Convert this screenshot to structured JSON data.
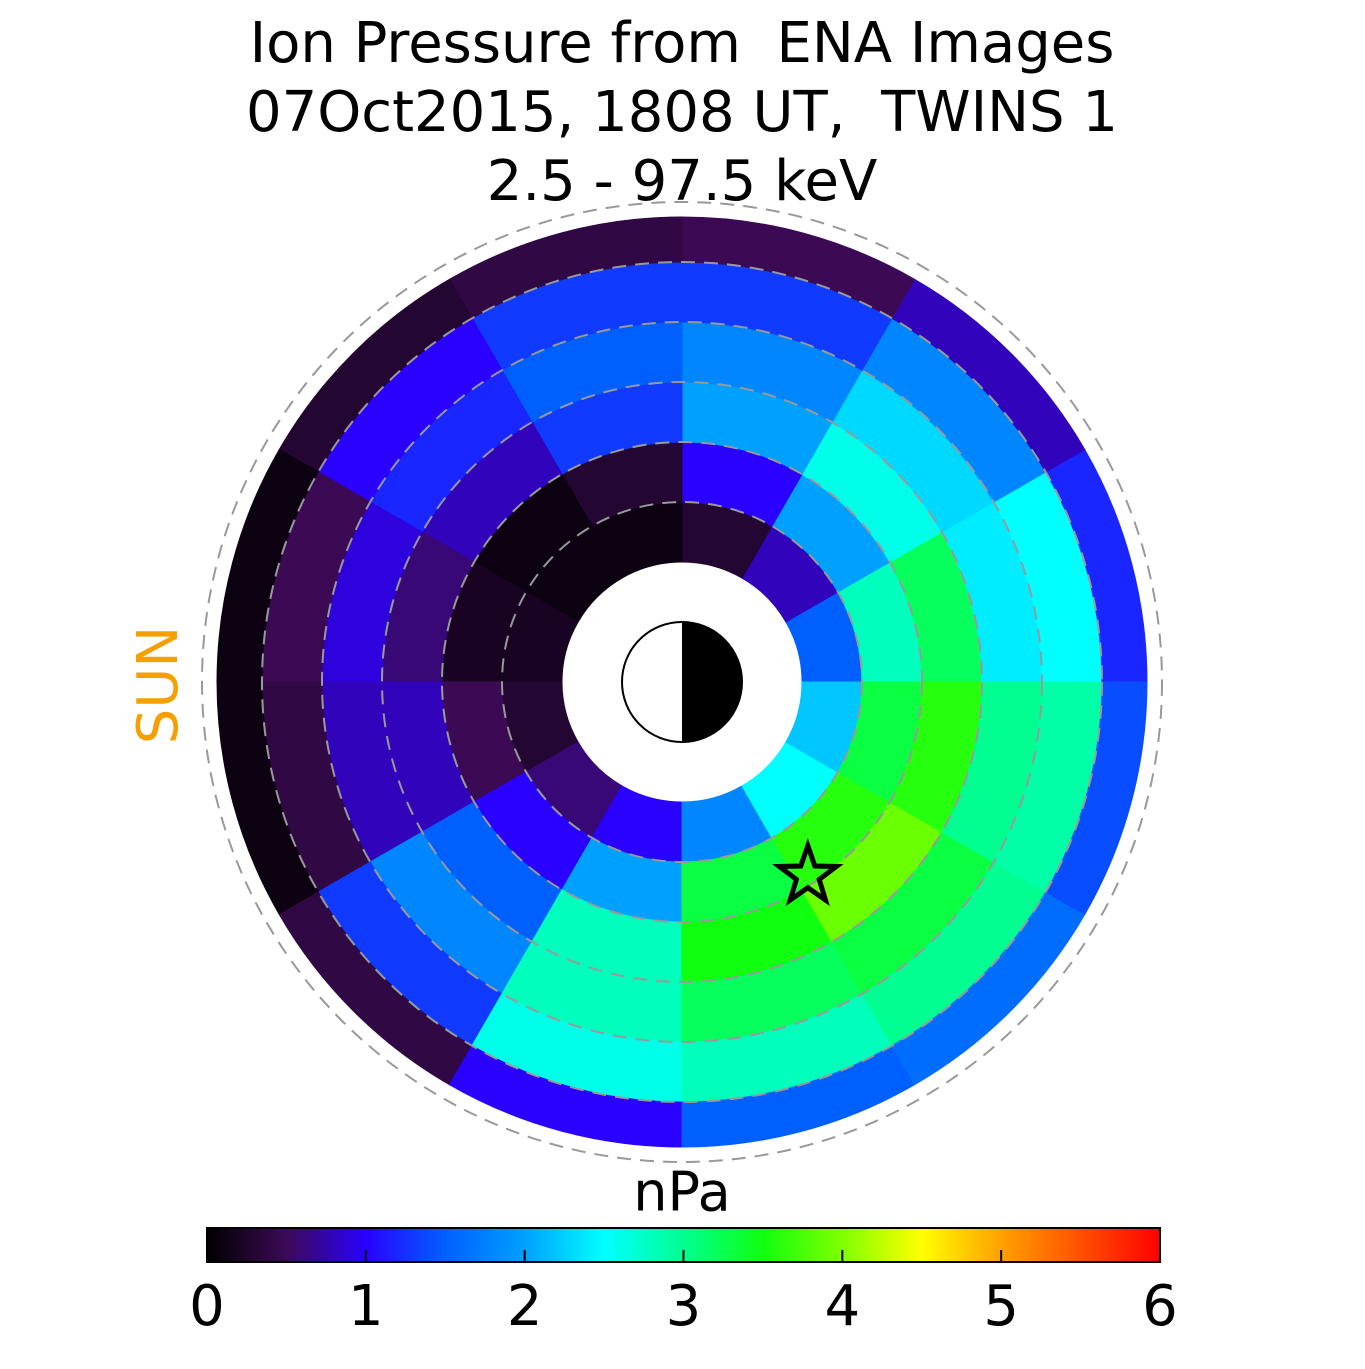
{
  "chart_data": {
    "type": "polar_heatmap",
    "title": "Ion Pressure from  ENA Images",
    "subtitle": "07Oct2015, 1808 UT,  TWINS 1",
    "energy_range": "2.5 - 97.5 keV",
    "sun_label": "SUN",
    "colorbar": {
      "label": "nPa",
      "lim": [
        0,
        6
      ],
      "ticks": [
        0,
        1,
        2,
        3,
        4,
        5,
        6
      ],
      "colors": [
        "#000000",
        "#3c0a55",
        "#2a00ff",
        "#0060ff",
        "#00a0ff",
        "#00ffff",
        "#00ff90",
        "#10ff10",
        "#80ff00",
        "#ffff00",
        "#ffa000",
        "#ff5000",
        "#ff0000"
      ]
    },
    "L_edges": [
      2,
      3,
      4,
      5,
      6,
      7,
      7.75
    ],
    "mlt_edges": [
      0,
      2,
      4,
      6,
      8,
      10,
      12,
      14,
      16,
      18,
      20,
      22,
      24
    ],
    "values": [
      [
        1.5,
        0.8,
        0.3,
        0.1,
        0.1,
        0.2,
        0.3,
        0.6,
        1.0,
        1.8,
        2.5,
        2.2
      ],
      [
        2.8,
        2.0,
        1.0,
        0.3,
        0.1,
        0.2,
        0.5,
        1.0,
        2.0,
        3.3,
        3.6,
        3.3
      ],
      [
        3.2,
        2.6,
        2.0,
        1.3,
        0.8,
        0.6,
        0.8,
        1.5,
        2.8,
        3.5,
        3.9,
        3.6
      ],
      [
        2.4,
        2.3,
        1.8,
        1.5,
        1.2,
        0.9,
        0.8,
        1.8,
        2.8,
        3.2,
        3.3,
        3.0
      ],
      [
        2.5,
        1.8,
        1.3,
        1.3,
        1.0,
        0.5,
        0.4,
        1.3,
        2.6,
        2.8,
        3.0,
        2.9
      ],
      [
        1.2,
        0.8,
        0.5,
        0.4,
        0.3,
        0.1,
        0.1,
        0.4,
        1.0,
        1.5,
        1.6,
        1.4
      ]
    ],
    "grid_L": [
      3,
      4,
      5,
      6,
      7,
      8
    ],
    "earth_L": 1,
    "star": {
      "L": 3.85,
      "mlt": 20.2
    }
  }
}
